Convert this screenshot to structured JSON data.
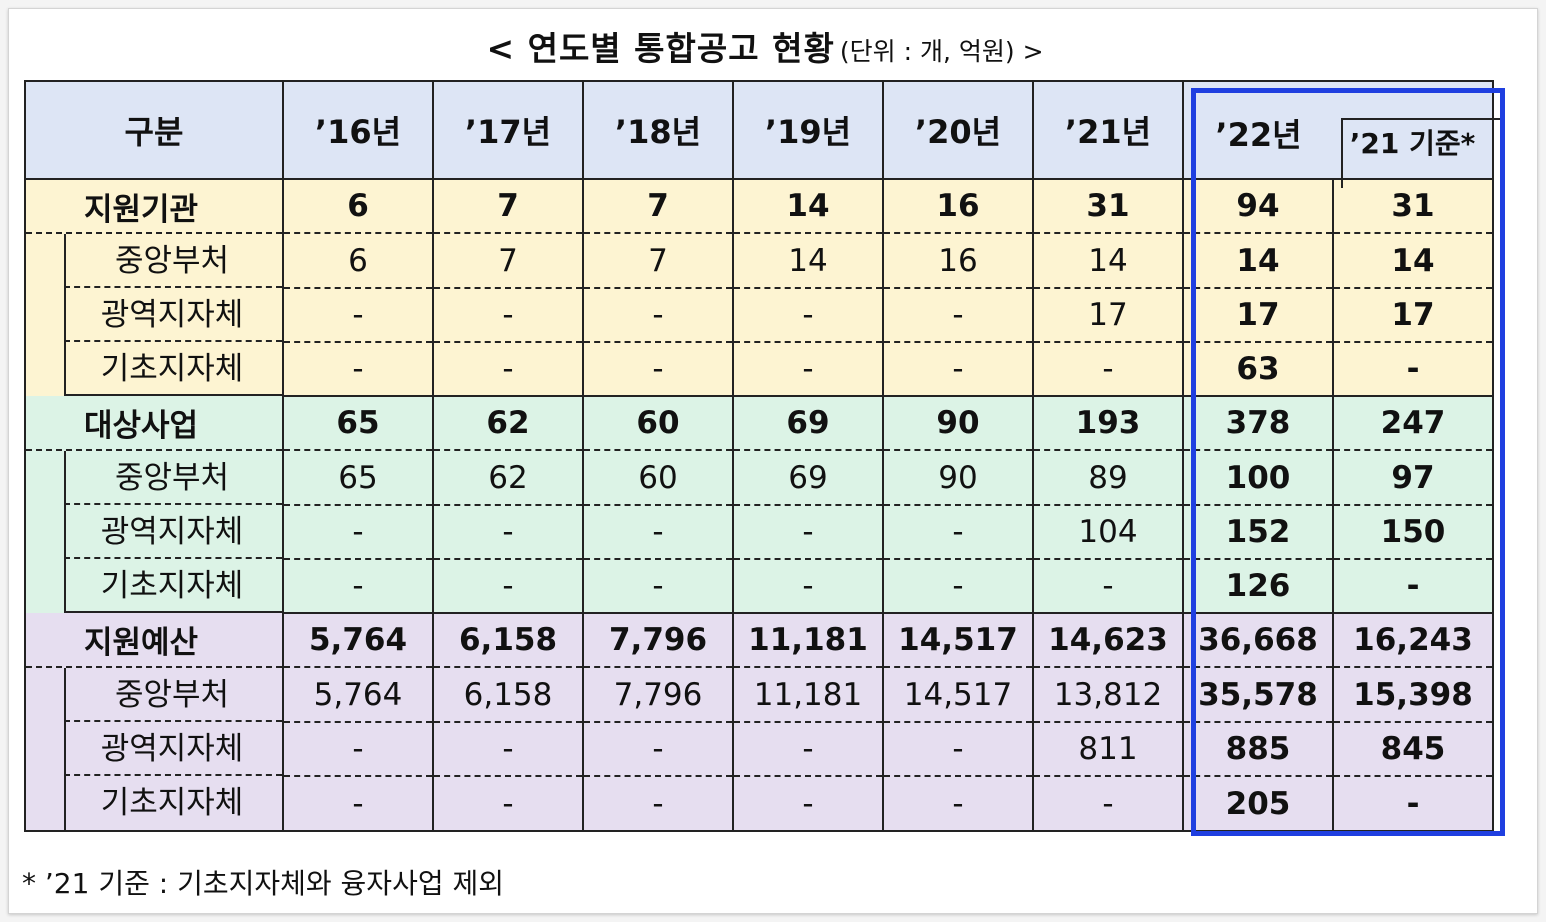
{
  "title": {
    "main": "< 연도별 통합공고 현황",
    "unit": "(단위 : 개, 억원) >"
  },
  "table": {
    "header": [
      "구분",
      "’16년",
      "’17년",
      "’18년",
      "’19년",
      "’20년",
      "’21년",
      "’22년",
      "’21 기준*"
    ],
    "rows": [
      {
        "label": "지원기관",
        "values": [
          "6",
          "7",
          "7",
          "14",
          "16",
          "31",
          "94",
          "31"
        ]
      },
      {
        "label": "중앙부처",
        "values": [
          "6",
          "7",
          "7",
          "14",
          "16",
          "14",
          "14",
          "14"
        ]
      },
      {
        "label": "광역지자체",
        "values": [
          "-",
          "-",
          "-",
          "-",
          "-",
          "17",
          "17",
          "17"
        ]
      },
      {
        "label": "기초지자체",
        "values": [
          "-",
          "-",
          "-",
          "-",
          "-",
          "-",
          "63",
          "-"
        ]
      },
      {
        "label": "대상사업",
        "values": [
          "65",
          "62",
          "60",
          "69",
          "90",
          "193",
          "378",
          "247"
        ]
      },
      {
        "label": "중앙부처",
        "values": [
          "65",
          "62",
          "60",
          "69",
          "90",
          "89",
          "100",
          "97"
        ]
      },
      {
        "label": "광역지자체",
        "values": [
          "-",
          "-",
          "-",
          "-",
          "-",
          "104",
          "152",
          "150"
        ]
      },
      {
        "label": "기초지자체",
        "values": [
          "-",
          "-",
          "-",
          "-",
          "-",
          "-",
          "126",
          "-"
        ]
      },
      {
        "label": "지원예산",
        "values": [
          "5,764",
          "6,158",
          "7,796",
          "11,181",
          "14,517",
          "14,623",
          "36,668",
          "16,243"
        ]
      },
      {
        "label": "중앙부처",
        "values": [
          "5,764",
          "6,158",
          "7,796",
          "11,181",
          "14,517",
          "13,812",
          "35,578",
          "15,398"
        ]
      },
      {
        "label": "광역지자체",
        "values": [
          "-",
          "-",
          "-",
          "-",
          "-",
          "811",
          "885",
          "845"
        ]
      },
      {
        "label": "기초지자체",
        "values": [
          "-",
          "-",
          "-",
          "-",
          "-",
          "-",
          "205",
          "-"
        ]
      }
    ]
  },
  "colors": {
    "header_bg": "#dde5f5",
    "group1_bg": "#fdf4d2",
    "group2_bg": "#dcf3e6",
    "group3_bg": "#e6def0",
    "highlight_border": "#1f3fe0"
  },
  "footnote": "* ’21 기준 : 기초지자체와 융자사업 제외"
}
